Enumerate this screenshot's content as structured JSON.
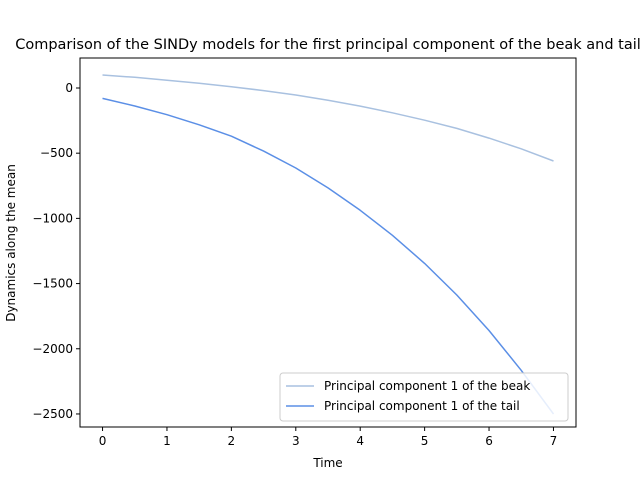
{
  "chart_data": {
    "type": "line",
    "title": "Comparison of the SINDy models for the first principal component of the beak and tail",
    "xlabel": "Time",
    "ylabel": "Dynamics along the mean",
    "xlim": [
      -0.35,
      7.35
    ],
    "ylim": [
      -2600,
      230
    ],
    "xticks": [
      0,
      1,
      2,
      3,
      4,
      5,
      6,
      7
    ],
    "yticks": [
      0,
      -500,
      -1000,
      -1500,
      -2000,
      -2500
    ],
    "grid": false,
    "legend_position": "lower-right",
    "x": [
      0,
      0.5,
      1,
      1.5,
      2,
      2.5,
      3,
      3.5,
      4,
      4.5,
      5,
      5.5,
      6,
      6.5,
      7
    ],
    "series": [
      {
        "name": "Principal component 1 of the beak",
        "color": "#a9c1e0",
        "values": [
          100,
          82,
          60,
          36,
          10,
          -20,
          -54,
          -94,
          -139,
          -190,
          -247,
          -310,
          -384,
          -466,
          -560
        ]
      },
      {
        "name": "Principal component 1 of the tail",
        "color": "#5b8fe6",
        "values": [
          -80,
          -138,
          -205,
          -282,
          -370,
          -484,
          -614,
          -766,
          -938,
          -1130,
          -1345,
          -1588,
          -1860,
          -2165,
          -2500
        ]
      }
    ]
  }
}
